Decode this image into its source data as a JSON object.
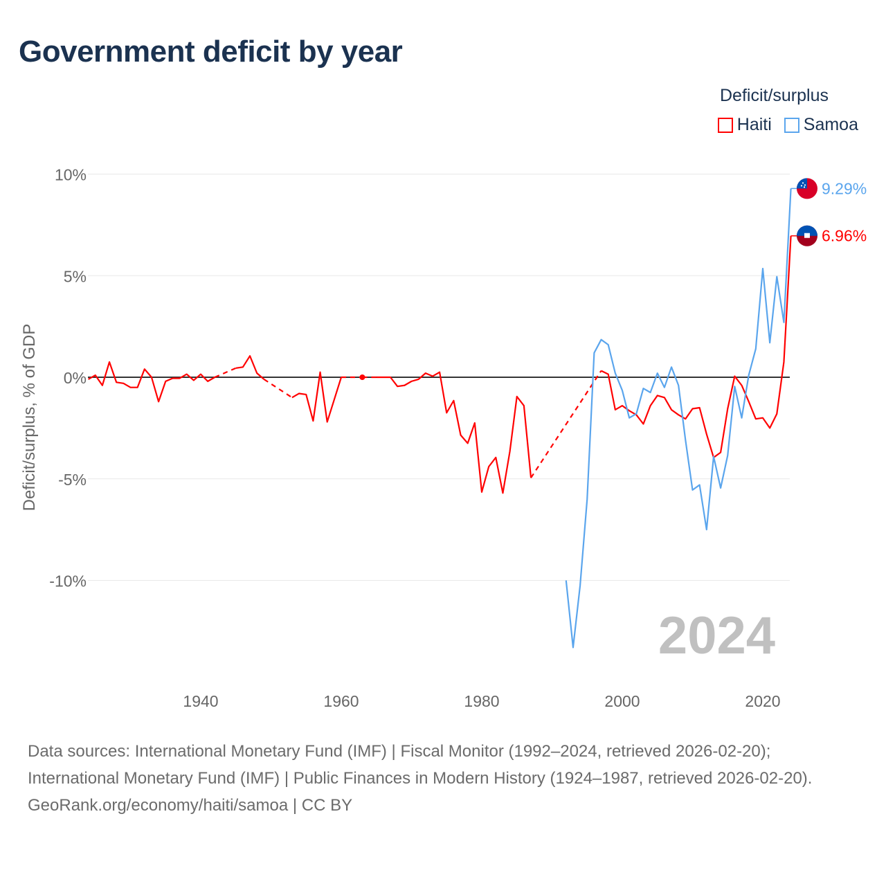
{
  "title": "Government deficit by year",
  "legend": {
    "title": "Deficit/surplus",
    "items": [
      {
        "label": "Haiti",
        "color": "#ff0000"
      },
      {
        "label": "Samoa",
        "color": "#5aa5ed"
      }
    ]
  },
  "footer": {
    "sources": "Data sources: International Monetary Fund (IMF) | Fiscal Monitor (1992–2024, retrieved 2026-02-20); International Monetary Fund (IMF) | Public Finances in Modern History (1924–1987, retrieved 2026-02-20).",
    "credit": "GeoRank.org/economy/haiti/samoa | CC BY"
  },
  "chart_data": {
    "type": "line",
    "title": "Government deficit by year",
    "ylabel": "Deficit/surplus, % of GDP",
    "xlabel": "",
    "ylim": [
      -14,
      10.5
    ],
    "xlim": [
      1924,
      2024
    ],
    "yticks": [
      {
        "v": 10,
        "label": "10%"
      },
      {
        "v": 5,
        "label": "5%"
      },
      {
        "v": 0,
        "label": "0%"
      },
      {
        "v": -5,
        "label": "-5%"
      },
      {
        "v": -10,
        "label": "-10%"
      }
    ],
    "xticks": [
      {
        "v": 1940,
        "label": "1940"
      },
      {
        "v": 1960,
        "label": "1960"
      },
      {
        "v": 1980,
        "label": "1980"
      },
      {
        "v": 2000,
        "label": "2000"
      },
      {
        "v": 2020,
        "label": "2020"
      }
    ],
    "year_label": "2024",
    "series": [
      {
        "name": "Haiti",
        "color": "#ff0000",
        "end_label": "6.96%",
        "x": [
          1924,
          1925,
          1926,
          1927,
          1928,
          1929,
          1930,
          1931,
          1932,
          1933,
          1934,
          1935,
          1936,
          1937,
          1938,
          1939,
          1940,
          1941,
          1942,
          1945,
          1946,
          1947,
          1948,
          1949,
          1953,
          1954,
          1955,
          1956,
          1957,
          1958,
          1959,
          1960,
          1963,
          1965,
          1966,
          1967,
          1968,
          1969,
          1970,
          1971,
          1972,
          1973,
          1974,
          1975,
          1976,
          1977,
          1978,
          1979,
          1980,
          1981,
          1982,
          1983,
          1984,
          1985,
          1986,
          1987,
          1997,
          1998,
          1999,
          2000,
          2001,
          2002,
          2003,
          2004,
          2005,
          2006,
          2007,
          2008,
          2009,
          2010,
          2011,
          2012,
          2013,
          2014,
          2015,
          2016,
          2017,
          2018,
          2019,
          2020,
          2021,
          2022,
          2023,
          2024
        ],
        "y": [
          -0.1,
          0.1,
          -0.4,
          0.75,
          -0.25,
          -0.3,
          -0.5,
          -0.5,
          0.4,
          0,
          -1.2,
          -0.2,
          -0.05,
          -0.05,
          0.15,
          -0.15,
          0.15,
          -0.2,
          0,
          0.45,
          0.5,
          1.05,
          0.2,
          -0.1,
          -1.0,
          -0.8,
          -0.85,
          -2.15,
          0.25,
          -2.2,
          -1.1,
          0,
          0,
          0,
          0,
          0,
          -0.45,
          -0.4,
          -0.2,
          -0.1,
          0.2,
          0.05,
          0.25,
          -1.75,
          -1.15,
          -2.85,
          -3.25,
          -2.25,
          -5.65,
          -4.4,
          -3.95,
          -5.7,
          -3.65,
          -0.95,
          -1.4,
          -4.95,
          0.32,
          0.15,
          -1.6,
          -1.4,
          -1.65,
          -1.85,
          -2.3,
          -1.4,
          -0.9,
          -1.0,
          -1.6,
          -1.85,
          -2.05,
          -1.55,
          -1.5,
          -2.8,
          -3.95,
          -3.7,
          -1.55,
          0.05,
          -0.4,
          -1.2,
          -2.05,
          -2.0,
          -2.5,
          -1.8,
          0.75,
          6.96
        ]
      },
      {
        "name": "Samoa",
        "color": "#5aa5ed",
        "end_label": "9.29%",
        "x": [
          1992,
          1993,
          1994,
          1995,
          1996,
          1997,
          1998,
          1999,
          2000,
          2001,
          2002,
          2003,
          2004,
          2005,
          2006,
          2007,
          2008,
          2009,
          2010,
          2011,
          2012,
          2013,
          2014,
          2015,
          2016,
          2017,
          2018,
          2019,
          2020,
          2021,
          2022,
          2023,
          2024
        ],
        "y": [
          -10.0,
          -13.3,
          -10.25,
          -6.0,
          1.2,
          1.85,
          1.6,
          0.2,
          -0.65,
          -2.0,
          -1.8,
          -0.55,
          -0.75,
          0.2,
          -0.5,
          0.5,
          -0.4,
          -3.1,
          -5.55,
          -5.3,
          -7.5,
          -3.9,
          -5.45,
          -3.85,
          -0.45,
          -2.0,
          0.1,
          1.4,
          5.35,
          1.7,
          4.95,
          2.7,
          9.29
        ]
      }
    ]
  }
}
